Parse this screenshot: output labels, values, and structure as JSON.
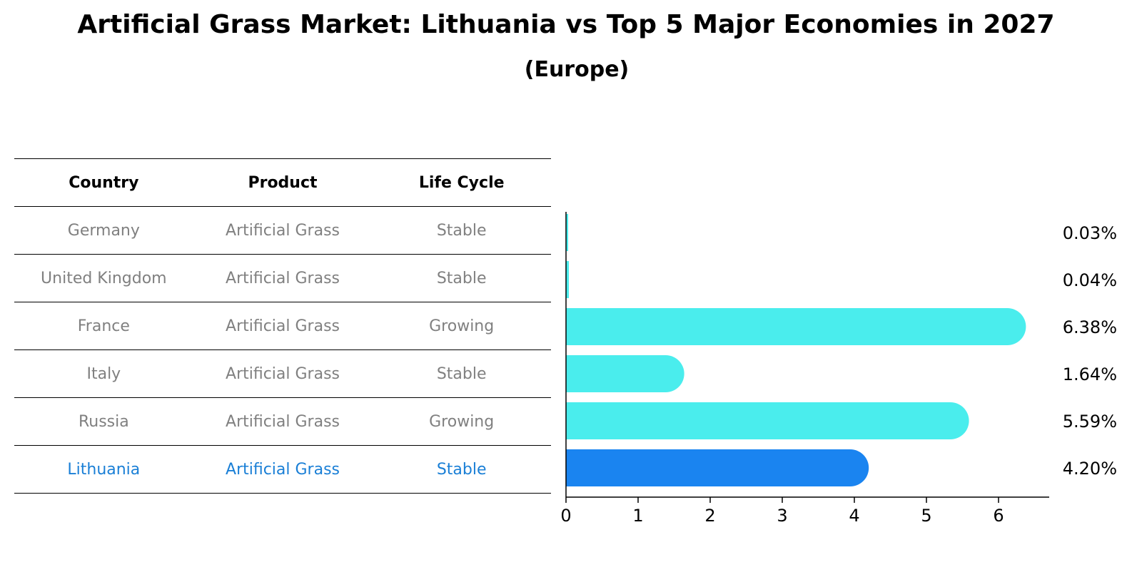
{
  "chart_data": {
    "type": "bar",
    "orientation": "horizontal",
    "title": "Artificial Grass Market: Lithuania vs Top 5 Major Economies in 2027",
    "subtitle": "(Europe)",
    "columns": [
      "Country",
      "Product",
      "Life Cycle"
    ],
    "rows": [
      {
        "country": "Germany",
        "product": "Artificial Grass",
        "life_cycle": "Stable",
        "value": 0.03,
        "label": "0.03%",
        "highlight": false
      },
      {
        "country": "United Kingdom",
        "product": "Artificial Grass",
        "life_cycle": "Stable",
        "value": 0.04,
        "label": "0.04%",
        "highlight": false
      },
      {
        "country": "France",
        "product": "Artificial Grass",
        "life_cycle": "Growing",
        "value": 6.38,
        "label": "6.38%",
        "highlight": false
      },
      {
        "country": "Italy",
        "product": "Artificial Grass",
        "life_cycle": "Stable",
        "value": 1.64,
        "label": "1.64%",
        "highlight": false
      },
      {
        "country": "Russia",
        "product": "Artificial Grass",
        "life_cycle": "Growing",
        "value": 5.59,
        "label": "5.59%",
        "highlight": false
      },
      {
        "country": "Lithuania",
        "product": "Artificial Grass",
        "life_cycle": "Stable",
        "value": 4.2,
        "label": "4.20%",
        "highlight": true
      }
    ],
    "xticks": [
      0,
      1,
      2,
      3,
      4,
      5,
      6
    ],
    "xlim": [
      0,
      6.7
    ],
    "colors": {
      "bar": "#4aeded",
      "highlight_bar": "#1a84f0",
      "highlight_text": "#1a7fd6",
      "muted_text": "#808080"
    }
  }
}
